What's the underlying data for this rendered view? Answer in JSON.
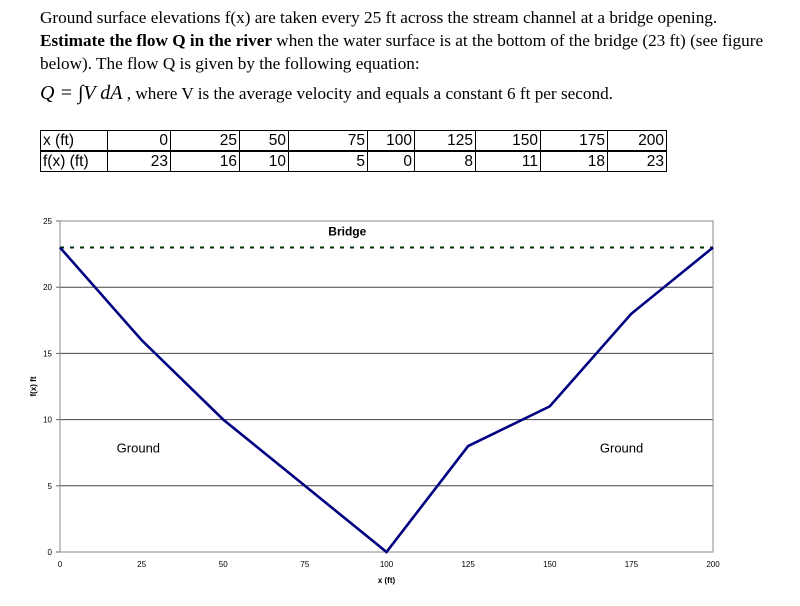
{
  "problem": {
    "sentence1": "Ground surface elevations f(x) are taken every 25 ft across the stream channel at a bridge opening.",
    "bold_phrase": "Estimate the flow Q in the river",
    "sentence2_rest": " when the water surface is at the bottom of the bridge (23 ft) (see figure below).  The flow Q is given by the following equation:",
    "equation": "Q = ∫V dA",
    "equation_note": ", where V is the average velocity and equals a constant 6 ft per second."
  },
  "table": {
    "row_headers": [
      "x (ft)",
      "f(x) (ft)"
    ],
    "x": [
      "0",
      "25",
      "50",
      "75",
      "100",
      "125",
      "150",
      "175",
      "200"
    ],
    "fx": [
      "23",
      "16",
      "10",
      "5",
      "0",
      "8",
      "11",
      "18",
      "23"
    ]
  },
  "chart_data": {
    "type": "line",
    "xlabel": "x (ft)",
    "ylabel": "f(x) ft",
    "xlim": [
      0,
      200
    ],
    "ylim": [
      0,
      25
    ],
    "xticks": [
      "0",
      "25",
      "50",
      "75",
      "100",
      "125",
      "150",
      "175",
      "200"
    ],
    "yticks": [
      "0",
      "5",
      "10",
      "15",
      "20",
      "25"
    ],
    "grid": "horizontal",
    "series": [
      {
        "x": [
          0,
          25,
          50,
          75,
          100,
          125,
          150,
          175,
          200
        ],
        "y": [
          23,
          16,
          10,
          5,
          0,
          8,
          11,
          18,
          23
        ],
        "color": "#000080"
      }
    ],
    "reference_line": {
      "y": 23,
      "style": "dashed",
      "color": "#003300"
    },
    "annotations": [
      {
        "text": "Bridge",
        "x": 88,
        "y": 24.2
      },
      {
        "text": "Ground",
        "x": 24,
        "y": 7.8
      },
      {
        "text": "Ground",
        "x": 172,
        "y": 7.8
      }
    ]
  }
}
